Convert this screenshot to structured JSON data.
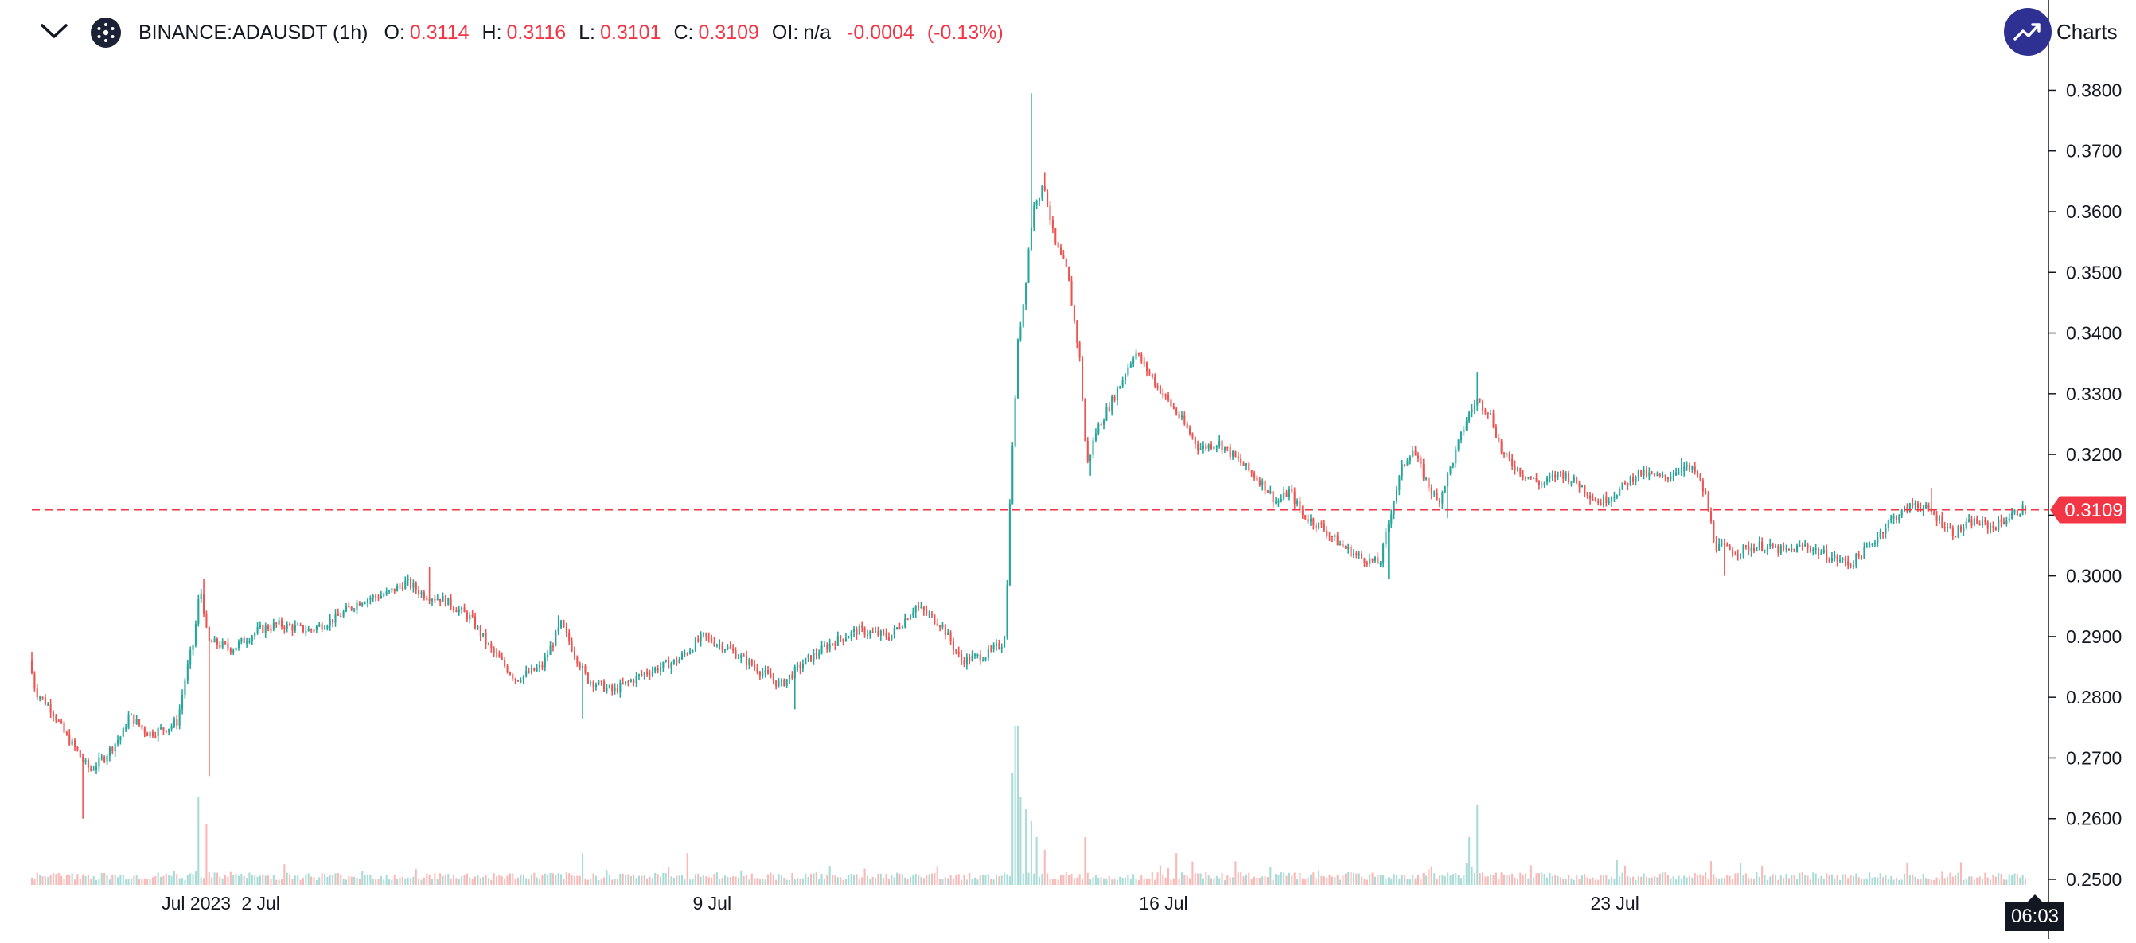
{
  "header": {
    "symbol": "BINANCE:ADAUSDT (1h)",
    "open_label": "O:",
    "open": "0.3114",
    "high_label": "H:",
    "high": "0.3116",
    "low_label": "L:",
    "low": "0.3101",
    "close_label": "C:",
    "close": "0.3109",
    "oi_label": "OI:",
    "oi": "n/a",
    "change": "-0.0004",
    "change_pct": "(-0.13%)",
    "icons": {
      "collapse": "chevron-down-icon",
      "coin": "cardano-icon",
      "brand": "trend-up-icon"
    }
  },
  "brand": {
    "text": "Charts"
  },
  "colors": {
    "up": "#26a69a",
    "down": "#ef5350",
    "up_volume": "#a9dcd7",
    "down_volume": "#f8b9b7",
    "last_price": "#f23645",
    "axis": "#131722",
    "brand": "#2e3192"
  },
  "last_price_label": "0.3109",
  "time_badge": "06:03",
  "chart_data": {
    "type": "candlestick",
    "title": "",
    "ylim": [
      0.25,
      0.3815
    ],
    "y_ticks": [
      "0.3800",
      "0.3700",
      "0.3600",
      "0.3500",
      "0.3400",
      "0.3300",
      "0.3200",
      "0.3100",
      "0.3000",
      "0.2900",
      "0.2800",
      "0.2700",
      "0.2600",
      "0.2500"
    ],
    "x_ticks": [
      {
        "label": "Jul 2023",
        "day": 1.0
      },
      {
        "label": "2 Jul",
        "day": 2.0
      },
      {
        "label": "9 Jul",
        "day": 9.0
      },
      {
        "label": "16 Jul",
        "day": 16.0
      },
      {
        "label": "23 Jul",
        "day": 23.0
      }
    ],
    "x_range_days": [
      -1.55,
      29.7
    ],
    "last_price": 0.3109,
    "candles_per_day": 24,
    "waypoints": [
      [
        -1.55,
        0.286
      ],
      [
        -1.45,
        0.281
      ],
      [
        -1.2,
        0.278
      ],
      [
        -1.0,
        0.274
      ],
      [
        -0.8,
        0.271
      ],
      [
        -0.72,
        0.2695
      ],
      [
        -0.6,
        0.268
      ],
      [
        -0.4,
        0.27
      ],
      [
        -0.1,
        0.274
      ],
      [
        0.0,
        0.277
      ],
      [
        0.3,
        0.274
      ],
      [
        0.6,
        0.275
      ],
      [
        0.75,
        0.276
      ],
      [
        0.85,
        0.282
      ],
      [
        0.95,
        0.287
      ],
      [
        1.0,
        0.289
      ],
      [
        1.1,
        0.298
      ],
      [
        1.14,
        0.296
      ],
      [
        1.22,
        0.289
      ],
      [
        1.3,
        0.289
      ],
      [
        1.6,
        0.288
      ],
      [
        2.0,
        0.291
      ],
      [
        2.3,
        0.292
      ],
      [
        2.8,
        0.291
      ],
      [
        3.2,
        0.293
      ],
      [
        3.6,
        0.296
      ],
      [
        4.0,
        0.297
      ],
      [
        4.3,
        0.299
      ],
      [
        4.55,
        0.297
      ],
      [
        4.9,
        0.296
      ],
      [
        5.3,
        0.293
      ],
      [
        5.6,
        0.288
      ],
      [
        6.0,
        0.283
      ],
      [
        6.4,
        0.285
      ],
      [
        6.7,
        0.292
      ],
      [
        7.1,
        0.283
      ],
      [
        7.5,
        0.281
      ],
      [
        8.0,
        0.284
      ],
      [
        8.5,
        0.286
      ],
      [
        8.9,
        0.29
      ],
      [
        9.3,
        0.288
      ],
      [
        9.7,
        0.285
      ],
      [
        10.1,
        0.282
      ],
      [
        10.5,
        0.286
      ],
      [
        10.9,
        0.289
      ],
      [
        11.3,
        0.291
      ],
      [
        11.8,
        0.29
      ],
      [
        12.2,
        0.295
      ],
      [
        12.6,
        0.292
      ],
      [
        12.9,
        0.286
      ],
      [
        13.3,
        0.287
      ],
      [
        13.55,
        0.289
      ],
      [
        13.6,
        0.292
      ],
      [
        13.65,
        0.311
      ],
      [
        13.72,
        0.325
      ],
      [
        13.78,
        0.338
      ],
      [
        13.88,
        0.346
      ],
      [
        13.98,
        0.357
      ],
      [
        14.05,
        0.362
      ],
      [
        14.2,
        0.364
      ],
      [
        14.35,
        0.355
      ],
      [
        14.55,
        0.35
      ],
      [
        14.75,
        0.335
      ],
      [
        14.85,
        0.318
      ],
      [
        15.0,
        0.324
      ],
      [
        15.3,
        0.33
      ],
      [
        15.6,
        0.337
      ],
      [
        15.9,
        0.332
      ],
      [
        16.3,
        0.326
      ],
      [
        16.6,
        0.321
      ],
      [
        16.9,
        0.322
      ],
      [
        17.3,
        0.318
      ],
      [
        17.6,
        0.315
      ],
      [
        17.8,
        0.312
      ],
      [
        18.0,
        0.314
      ],
      [
        18.2,
        0.31
      ],
      [
        18.5,
        0.308
      ],
      [
        18.8,
        0.305
      ],
      [
        19.1,
        0.303
      ],
      [
        19.4,
        0.302
      ],
      [
        19.6,
        0.312
      ],
      [
        19.75,
        0.318
      ],
      [
        19.9,
        0.321
      ],
      [
        20.1,
        0.316
      ],
      [
        20.3,
        0.312
      ],
      [
        20.5,
        0.318
      ],
      [
        20.75,
        0.326
      ],
      [
        20.9,
        0.329
      ],
      [
        21.1,
        0.327
      ],
      [
        21.3,
        0.32
      ],
      [
        21.6,
        0.317
      ],
      [
        21.9,
        0.315
      ],
      [
        22.2,
        0.317
      ],
      [
        22.5,
        0.315
      ],
      [
        22.8,
        0.312
      ],
      [
        23.1,
        0.314
      ],
      [
        23.4,
        0.317
      ],
      [
        23.8,
        0.316
      ],
      [
        24.1,
        0.318
      ],
      [
        24.3,
        0.317
      ],
      [
        24.45,
        0.313
      ],
      [
        24.6,
        0.305
      ],
      [
        24.9,
        0.304
      ],
      [
        25.3,
        0.305
      ],
      [
        25.7,
        0.304
      ],
      [
        26.0,
        0.305
      ],
      [
        26.4,
        0.303
      ],
      [
        26.7,
        0.302
      ],
      [
        27.0,
        0.305
      ],
      [
        27.3,
        0.309
      ],
      [
        27.7,
        0.312
      ],
      [
        28.0,
        0.31
      ],
      [
        28.3,
        0.307
      ],
      [
        28.6,
        0.309
      ],
      [
        28.9,
        0.308
      ],
      [
        29.2,
        0.31
      ],
      [
        29.4,
        0.3114
      ]
    ],
    "spikes": [
      {
        "day": -1.55,
        "high": 0.2875
      },
      {
        "day": -0.76,
        "low": 0.26
      },
      {
        "day": 1.1,
        "high": 0.2995
      },
      {
        "day": 1.2,
        "low": 0.267
      },
      {
        "day": 4.6,
        "high": 0.3015
      },
      {
        "day": 6.6,
        "high": 0.2935
      },
      {
        "day": 7.0,
        "low": 0.2765
      },
      {
        "day": 10.3,
        "low": 0.278
      },
      {
        "day": 13.95,
        "high": 0.3795
      },
      {
        "day": 14.15,
        "high": 0.3665
      },
      {
        "day": 14.85,
        "low": 0.3165
      },
      {
        "day": 19.5,
        "low": 0.2995
      },
      {
        "day": 20.85,
        "high": 0.3335
      },
      {
        "day": 20.4,
        "low": 0.3095
      },
      {
        "day": 24.05,
        "high": 0.3195
      },
      {
        "day": 24.7,
        "low": 0.3
      },
      {
        "day": 27.9,
        "high": 0.3145
      }
    ],
    "volume_spikes": [
      {
        "day": 1.05,
        "value": 0.55
      },
      {
        "day": 1.15,
        "value": 0.38
      },
      {
        "day": 13.65,
        "value": 0.7
      },
      {
        "day": 13.72,
        "value": 1.0
      },
      {
        "day": 13.78,
        "value": 0.55
      },
      {
        "day": 13.85,
        "value": 0.48
      },
      {
        "day": 13.95,
        "value": 0.4
      },
      {
        "day": 14.05,
        "value": 0.3
      },
      {
        "day": 14.15,
        "value": 0.22
      },
      {
        "day": 14.8,
        "value": 0.3
      },
      {
        "day": 20.85,
        "value": 0.5
      },
      {
        "day": 20.75,
        "value": 0.3
      },
      {
        "day": 7.0,
        "value": 0.2
      },
      {
        "day": 8.6,
        "value": 0.2
      },
      {
        "day": 16.2,
        "value": 0.2
      }
    ]
  }
}
